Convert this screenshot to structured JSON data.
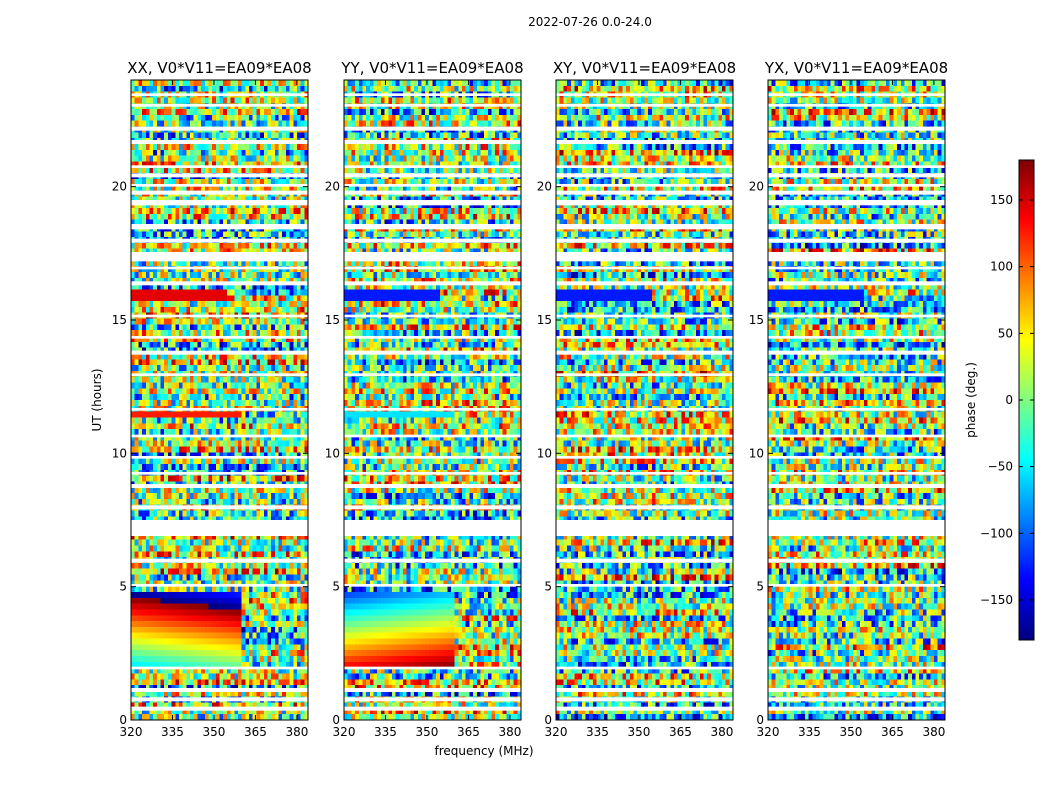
{
  "suptitle": "2022-07-26 0.0-24.0",
  "chart_data": {
    "type": "heatmap",
    "panels": [
      {
        "title": "XX, V0*V11=EA09*EA08"
      },
      {
        "title": "YY, V0*V11=EA09*EA08"
      },
      {
        "title": "XY, V0*V11=EA09*EA08"
      },
      {
        "title": "YX, V0*V11=EA09*EA08"
      }
    ],
    "xlabel": "frequency (MHz)",
    "ylabel": "UT (hours)",
    "xlim": [
      320,
      384
    ],
    "ylim": [
      0,
      24
    ],
    "xticks": [
      320,
      335,
      350,
      365,
      380
    ],
    "xtick_labels": [
      "320",
      "335",
      "350",
      "365",
      "380"
    ],
    "yticks": [
      0,
      5,
      10,
      15,
      20
    ],
    "ytick_labels": [
      "0",
      "5",
      "10",
      "15",
      "20"
    ],
    "colorbar": {
      "label": "phase (deg.)",
      "range": [
        -180,
        180
      ],
      "ticks": [
        -150,
        -100,
        -50,
        0,
        50,
        100,
        150
      ],
      "tick_labels": [
        "−150",
        "−100",
        "−50",
        "0",
        "50",
        "100",
        "150"
      ],
      "colormap": "jet",
      "colors": [
        "#00007f",
        "#0000ff",
        "#007fff",
        "#00ffff",
        "#7fff7f",
        "#ffff00",
        "#ff7f00",
        "#ff0000",
        "#7f0000"
      ]
    },
    "flagged_color": "#ffffff",
    "flagged_ut_ranges": [
      [
        0.35,
        0.5
      ],
      [
        0.7,
        0.85
      ],
      [
        1.05,
        1.2
      ],
      [
        1.9,
        2.0
      ],
      [
        5.0,
        5.1
      ],
      [
        5.9,
        6.05
      ],
      [
        6.9,
        7.5
      ],
      [
        7.9,
        8.05
      ],
      [
        8.7,
        8.85
      ],
      [
        9.2,
        9.3
      ],
      [
        9.8,
        9.9
      ],
      [
        10.6,
        10.7
      ],
      [
        11.6,
        11.7
      ],
      [
        12.9,
        13.0
      ],
      [
        13.7,
        13.85
      ],
      [
        14.3,
        14.4
      ],
      [
        15.1,
        15.2
      ],
      [
        16.3,
        16.45
      ],
      [
        16.9,
        17.0
      ],
      [
        17.2,
        17.55
      ],
      [
        17.9,
        18.05
      ],
      [
        18.4,
        18.6
      ],
      [
        19.3,
        19.5
      ],
      [
        19.7,
        19.85
      ],
      [
        20.0,
        20.1
      ],
      [
        20.35,
        20.5
      ],
      [
        20.7,
        20.8
      ],
      [
        21.6,
        21.75
      ],
      [
        22.1,
        22.25
      ],
      [
        23.0,
        23.1
      ],
      [
        23.4,
        23.5
      ]
    ]
  }
}
